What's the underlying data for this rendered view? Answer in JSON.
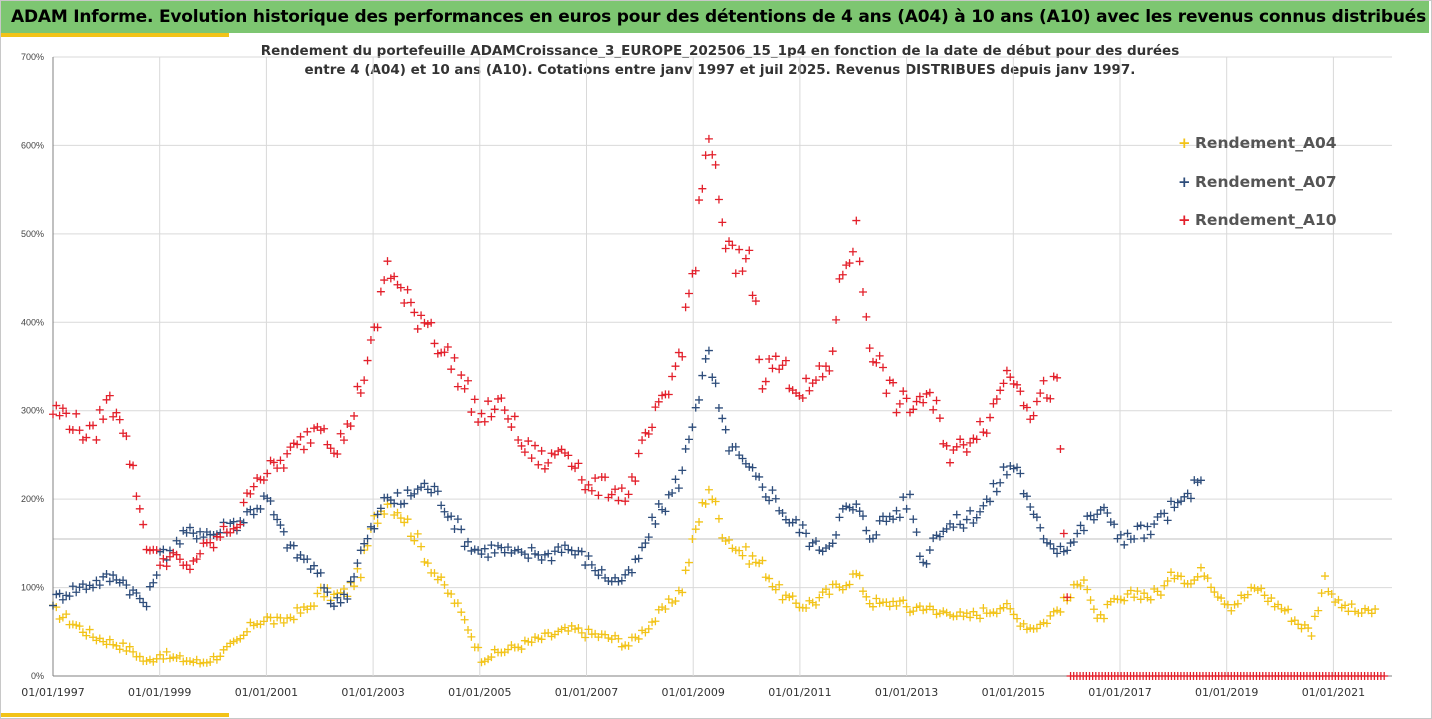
{
  "banner": {
    "title": "ADAM Informe. Evolution historique des performances en euros pour des détentions de 4 ans (A04) à 10 ans (A10) avec les revenus connus distribués"
  },
  "subtitle": {
    "line1": "Rendement du portefeuille ADAMCroissance_3_EUROPE_202506_15_1p4  en fonction de la date de début pour des durées",
    "line2": "entre 4 (A04) et 10 ans (A10). Cotations entre janv 1997 et juil 2025. Revenus DISTRIBUES depuis janv 1997."
  },
  "colors": {
    "banner_bg": "#7dc671",
    "accent": "#f2c318",
    "A04": "#f2c318",
    "A07": "#2e4d7b",
    "A10": "#e3202b",
    "grid": "#d9d9d9",
    "axis": "#808080"
  },
  "chart_data": {
    "type": "scatter",
    "marker": "plus",
    "x_axis": {
      "kind": "date",
      "range": [
        "1997-01-01",
        "2022-01-01"
      ]
    },
    "x_ticks": [
      "01/01/1997",
      "01/01/1999",
      "01/01/2001",
      "01/01/2003",
      "01/01/2005",
      "01/01/2007",
      "01/01/2009",
      "01/01/2011",
      "01/01/2013",
      "01/01/2015",
      "01/01/2017",
      "01/01/2019",
      "01/01/2021"
    ],
    "y_axis": {
      "range": [
        0,
        700
      ],
      "unit": "%"
    },
    "y_ticks": [
      "0%",
      "100%",
      "200%",
      "300%",
      "400%",
      "500%",
      "600%",
      "700%"
    ],
    "grid": "horizontal",
    "legend_position": "top-right",
    "series": [
      {
        "name": "Rendement_A04",
        "color": "#f2c318",
        "points": [
          [
            "1997-01",
            75
          ],
          [
            "1997-04",
            65
          ],
          [
            "1997-07",
            55
          ],
          [
            "1997-10",
            45
          ],
          [
            "1998-01",
            40
          ],
          [
            "1998-04",
            35
          ],
          [
            "1998-07",
            28
          ],
          [
            "1998-10",
            15
          ],
          [
            "1999-01",
            25
          ],
          [
            "1999-04",
            20
          ],
          [
            "1999-07",
            18
          ],
          [
            "1999-10",
            15
          ],
          [
            "2000-01",
            20
          ],
          [
            "2000-04",
            30
          ],
          [
            "2000-07",
            40
          ],
          [
            "2000-10",
            60
          ],
          [
            "2001-01",
            65
          ],
          [
            "2001-04",
            60
          ],
          [
            "2001-07",
            70
          ],
          [
            "2001-10",
            75
          ],
          [
            "2002-01",
            95
          ],
          [
            "2002-04",
            90
          ],
          [
            "2002-07",
            95
          ],
          [
            "2002-10",
            120
          ],
          [
            "2003-01",
            175
          ],
          [
            "2003-04",
            200
          ],
          [
            "2003-07",
            185
          ],
          [
            "2003-10",
            160
          ],
          [
            "2004-01",
            130
          ],
          [
            "2004-04",
            105
          ],
          [
            "2004-07",
            85
          ],
          [
            "2004-10",
            55
          ],
          [
            "2005-01",
            20
          ],
          [
            "2005-04",
            25
          ],
          [
            "2005-07",
            30
          ],
          [
            "2005-10",
            35
          ],
          [
            "2006-01",
            40
          ],
          [
            "2006-04",
            45
          ],
          [
            "2006-07",
            50
          ],
          [
            "2006-10",
            52
          ],
          [
            "2007-01",
            48
          ],
          [
            "2007-04",
            45
          ],
          [
            "2007-07",
            42
          ],
          [
            "2007-10",
            35
          ],
          [
            "2008-01",
            50
          ],
          [
            "2008-04",
            65
          ],
          [
            "2008-07",
            80
          ],
          [
            "2008-10",
            100
          ],
          [
            "2009-01",
            165
          ],
          [
            "2009-04",
            215
          ],
          [
            "2009-07",
            165
          ],
          [
            "2009-10",
            145
          ],
          [
            "2010-01",
            135
          ],
          [
            "2010-04",
            125
          ],
          [
            "2010-07",
            100
          ],
          [
            "2010-10",
            85
          ],
          [
            "2011-01",
            80
          ],
          [
            "2011-04",
            85
          ],
          [
            "2011-07",
            95
          ],
          [
            "2011-10",
            105
          ],
          [
            "2012-01",
            115
          ],
          [
            "2012-04",
            85
          ],
          [
            "2012-07",
            80
          ],
          [
            "2012-10",
            85
          ],
          [
            "2013-01",
            75
          ],
          [
            "2013-04",
            80
          ],
          [
            "2013-07",
            70
          ],
          [
            "2013-10",
            75
          ],
          [
            "2014-01",
            65
          ],
          [
            "2014-04",
            70
          ],
          [
            "2014-07",
            75
          ],
          [
            "2014-10",
            80
          ],
          [
            "2015-01",
            65
          ],
          [
            "2015-04",
            55
          ],
          [
            "2015-07",
            60
          ],
          [
            "2015-10",
            75
          ],
          [
            "2016-01",
            90
          ],
          [
            "2016-04",
            115
          ],
          [
            "2016-07",
            60
          ],
          [
            "2016-10",
            80
          ],
          [
            "2017-01",
            85
          ],
          [
            "2017-04",
            95
          ],
          [
            "2017-07",
            90
          ],
          [
            "2017-10",
            100
          ],
          [
            "2018-01",
            120
          ],
          [
            "2018-04",
            105
          ],
          [
            "2018-07",
            120
          ],
          [
            "2018-10",
            95
          ],
          [
            "2019-01",
            80
          ],
          [
            "2019-04",
            90
          ],
          [
            "2019-07",
            100
          ],
          [
            "2019-10",
            85
          ],
          [
            "2020-01",
            75
          ],
          [
            "2020-04",
            60
          ],
          [
            "2020-07",
            50
          ],
          [
            "2020-10",
            110
          ],
          [
            "2021-01",
            80
          ],
          [
            "2021-04",
            75
          ],
          [
            "2021-07",
            70
          ],
          [
            "2021-10",
            75
          ]
        ]
      },
      {
        "name": "Rendement_A07",
        "color": "#2e4d7b",
        "points": [
          [
            "1997-01",
            85
          ],
          [
            "1997-04",
            95
          ],
          [
            "1997-07",
            100
          ],
          [
            "1997-10",
            105
          ],
          [
            "1998-01",
            110
          ],
          [
            "1998-04",
            112
          ],
          [
            "1998-07",
            95
          ],
          [
            "1998-10",
            80
          ],
          [
            "1999-01",
            135
          ],
          [
            "1999-04",
            145
          ],
          [
            "1999-07",
            160
          ],
          [
            "1999-10",
            165
          ],
          [
            "2000-01",
            160
          ],
          [
            "2000-04",
            170
          ],
          [
            "2000-07",
            175
          ],
          [
            "2000-10",
            190
          ],
          [
            "2001-01",
            200
          ],
          [
            "2001-04",
            165
          ],
          [
            "2001-07",
            140
          ],
          [
            "2001-10",
            130
          ],
          [
            "2002-01",
            110
          ],
          [
            "2002-04",
            80
          ],
          [
            "2002-07",
            95
          ],
          [
            "2002-10",
            140
          ],
          [
            "2003-01",
            170
          ],
          [
            "2003-04",
            205
          ],
          [
            "2003-07",
            195
          ],
          [
            "2003-10",
            210
          ],
          [
            "2004-01",
            215
          ],
          [
            "2004-04",
            200
          ],
          [
            "2004-07",
            175
          ],
          [
            "2004-10",
            150
          ],
          [
            "2005-01",
            140
          ],
          [
            "2005-04",
            145
          ],
          [
            "2005-07",
            140
          ],
          [
            "2005-10",
            135
          ],
          [
            "2006-01",
            140
          ],
          [
            "2006-04",
            135
          ],
          [
            "2006-07",
            148
          ],
          [
            "2006-10",
            140
          ],
          [
            "2007-01",
            130
          ],
          [
            "2007-04",
            115
          ],
          [
            "2007-07",
            108
          ],
          [
            "2007-10",
            112
          ],
          [
            "2008-01",
            140
          ],
          [
            "2008-04",
            180
          ],
          [
            "2008-07",
            200
          ],
          [
            "2008-10",
            230
          ],
          [
            "2009-01",
            310
          ],
          [
            "2009-04",
            360
          ],
          [
            "2009-07",
            280
          ],
          [
            "2009-10",
            250
          ],
          [
            "2010-01",
            230
          ],
          [
            "2010-04",
            215
          ],
          [
            "2010-07",
            200
          ],
          [
            "2010-10",
            175
          ],
          [
            "2011-01",
            165
          ],
          [
            "2011-04",
            145
          ],
          [
            "2011-07",
            150
          ],
          [
            "2011-10",
            185
          ],
          [
            "2012-01",
            190
          ],
          [
            "2012-04",
            160
          ],
          [
            "2012-07",
            175
          ],
          [
            "2012-10",
            185
          ],
          [
            "2013-01",
            200
          ],
          [
            "2013-04",
            125
          ],
          [
            "2013-07",
            165
          ],
          [
            "2013-10",
            170
          ],
          [
            "2014-01",
            175
          ],
          [
            "2014-04",
            185
          ],
          [
            "2014-07",
            200
          ],
          [
            "2014-10",
            230
          ],
          [
            "2015-01",
            240
          ],
          [
            "2015-04",
            185
          ],
          [
            "2015-07",
            160
          ],
          [
            "2015-10",
            145
          ],
          [
            "2016-01",
            150
          ],
          [
            "2016-04",
            170
          ],
          [
            "2016-07",
            185
          ],
          [
            "2016-10",
            180
          ],
          [
            "2017-01",
            150
          ],
          [
            "2017-04",
            165
          ],
          [
            "2017-07",
            160
          ],
          [
            "2017-10",
            185
          ],
          [
            "2018-01",
            190
          ],
          [
            "2018-04",
            210
          ],
          [
            "2018-07",
            215
          ]
        ]
      },
      {
        "name": "Rendement_A10",
        "color": "#e3202b",
        "points": [
          [
            "1997-01",
            300
          ],
          [
            "1997-04",
            295
          ],
          [
            "1997-07",
            280
          ],
          [
            "1997-10",
            270
          ],
          [
            "1998-01",
            310
          ],
          [
            "1998-04",
            300
          ],
          [
            "1998-07",
            230
          ],
          [
            "1998-10",
            150
          ],
          [
            "1999-01",
            130
          ],
          [
            "1999-04",
            135
          ],
          [
            "1999-07",
            120
          ],
          [
            "1999-10",
            140
          ],
          [
            "2000-01",
            150
          ],
          [
            "2000-04",
            165
          ],
          [
            "2000-07",
            175
          ],
          [
            "2000-10",
            225
          ],
          [
            "2001-01",
            230
          ],
          [
            "2001-04",
            240
          ],
          [
            "2001-07",
            255
          ],
          [
            "2001-10",
            270
          ],
          [
            "2002-01",
            290
          ],
          [
            "2002-04",
            260
          ],
          [
            "2002-07",
            275
          ],
          [
            "2002-10",
            330
          ],
          [
            "2003-01",
            380
          ],
          [
            "2003-04",
            470
          ],
          [
            "2003-07",
            430
          ],
          [
            "2003-10",
            410
          ],
          [
            "2004-01",
            405
          ],
          [
            "2004-04",
            370
          ],
          [
            "2004-07",
            350
          ],
          [
            "2004-10",
            320
          ],
          [
            "2005-01",
            290
          ],
          [
            "2005-04",
            305
          ],
          [
            "2005-07",
            300
          ],
          [
            "2005-10",
            260
          ],
          [
            "2006-01",
            250
          ],
          [
            "2006-04",
            240
          ],
          [
            "2006-07",
            260
          ],
          [
            "2006-10",
            245
          ],
          [
            "2007-01",
            210
          ],
          [
            "2007-04",
            215
          ],
          [
            "2007-07",
            210
          ],
          [
            "2007-10",
            205
          ],
          [
            "2008-01",
            255
          ],
          [
            "2008-04",
            290
          ],
          [
            "2008-07",
            320
          ],
          [
            "2008-10",
            380
          ],
          [
            "2009-01",
            480
          ],
          [
            "2009-04",
            620
          ],
          [
            "2009-07",
            500
          ],
          [
            "2009-10",
            460
          ],
          [
            "2010-01",
            480
          ],
          [
            "2010-04",
            340
          ],
          [
            "2010-07",
            355
          ],
          [
            "2010-10",
            340
          ],
          [
            "2011-01",
            320
          ],
          [
            "2011-04",
            330
          ],
          [
            "2011-07",
            350
          ],
          [
            "2011-10",
            460
          ],
          [
            "2012-01",
            500
          ],
          [
            "2012-04",
            380
          ],
          [
            "2012-07",
            340
          ],
          [
            "2012-10",
            310
          ],
          [
            "2013-01",
            305
          ],
          [
            "2013-04",
            315
          ],
          [
            "2013-07",
            300
          ],
          [
            "2013-10",
            250
          ],
          [
            "2014-01",
            260
          ],
          [
            "2014-04",
            280
          ],
          [
            "2014-07",
            290
          ],
          [
            "2014-10",
            340
          ],
          [
            "2015-01",
            340
          ],
          [
            "2015-04",
            300
          ],
          [
            "2015-07",
            320
          ],
          [
            "2015-10",
            330
          ],
          [
            "2016-01",
            0
          ],
          [
            "2017-01",
            0
          ],
          [
            "2018-01",
            0
          ],
          [
            "2019-01",
            0
          ],
          [
            "2020-01",
            0
          ],
          [
            "2021-01",
            0
          ],
          [
            "2021-12",
            0
          ]
        ]
      }
    ]
  }
}
